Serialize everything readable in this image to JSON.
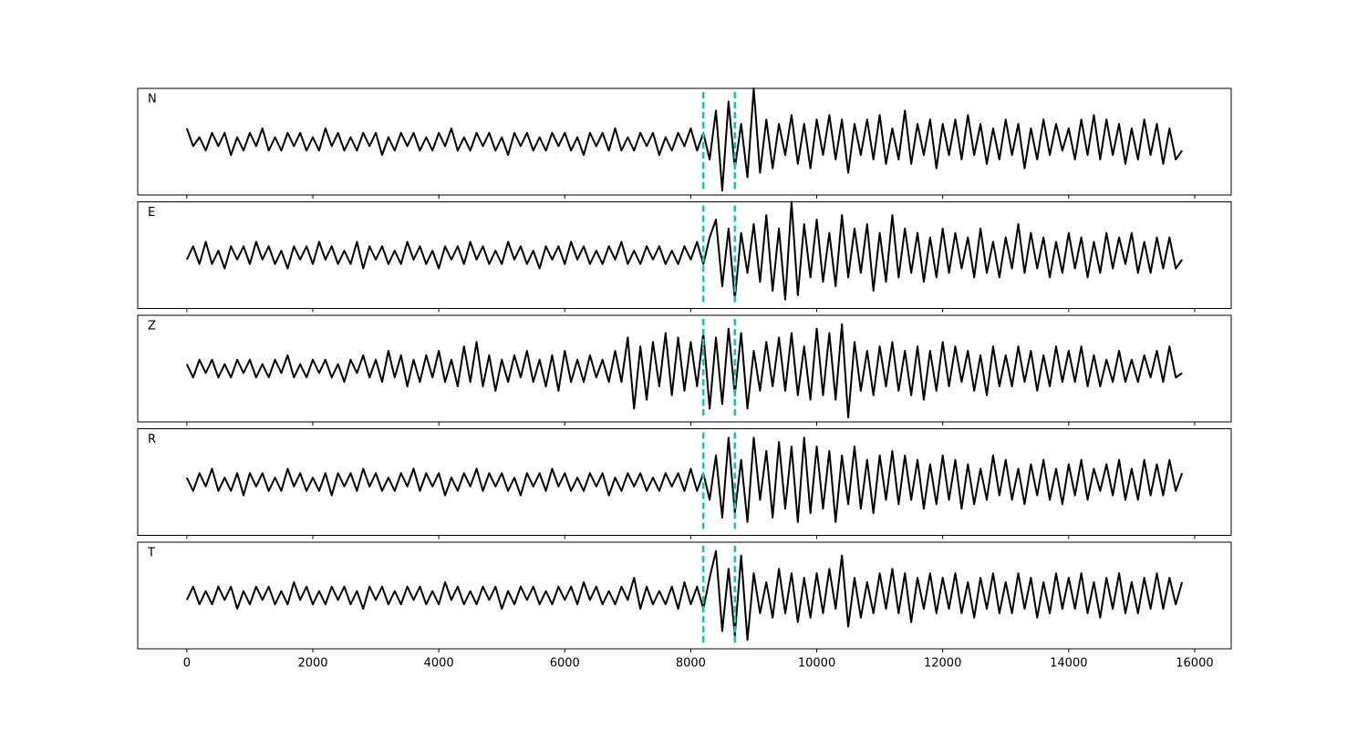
{
  "chart_data": {
    "type": "line",
    "layout": "stacked",
    "x": [
      0,
      100,
      200,
      300,
      400,
      500,
      600,
      700,
      800,
      900,
      1000,
      1100,
      1200,
      1300,
      1400,
      1500,
      1600,
      1700,
      1800,
      1900,
      2000,
      2100,
      2200,
      2300,
      2400,
      2500,
      2600,
      2700,
      2800,
      2900,
      3000,
      3100,
      3200,
      3300,
      3400,
      3500,
      3600,
      3700,
      3800,
      3900,
      4000,
      4100,
      4200,
      4300,
      4400,
      4500,
      4600,
      4700,
      4800,
      4900,
      5000,
      5100,
      5200,
      5300,
      5400,
      5500,
      5600,
      5700,
      5800,
      5900,
      6000,
      6100,
      6200,
      6300,
      6400,
      6500,
      6600,
      6700,
      6800,
      6900,
      7000,
      7100,
      7200,
      7300,
      7400,
      7500,
      7600,
      7700,
      7800,
      7900,
      8000,
      8100,
      8200,
      8300,
      8400,
      8500,
      8600,
      8700,
      8800,
      8900,
      9000,
      9100,
      9200,
      9300,
      9400,
      9500,
      9600,
      9700,
      9800,
      9900,
      10000,
      10100,
      10200,
      10300,
      10400,
      10500,
      10600,
      10700,
      10800,
      10900,
      11000,
      11100,
      11200,
      11300,
      11400,
      11500,
      11600,
      11700,
      11800,
      11900,
      12000,
      12100,
      12200,
      12300,
      12400,
      12500,
      12600,
      12700,
      12800,
      12900,
      13000,
      13100,
      13200,
      13300,
      13400,
      13500,
      13600,
      13700,
      13800,
      13900,
      14000,
      14100,
      14200,
      14300,
      14400,
      14500,
      14600,
      14700,
      14800,
      14900,
      15000,
      15100,
      15200,
      15300,
      15400,
      15500,
      15600,
      15700,
      15800
    ],
    "series": [
      {
        "name": "N",
        "color": "#000000",
        "values": [
          3,
          -1,
          1,
          -2,
          2,
          -1,
          2,
          -3,
          1,
          -2,
          2,
          -1,
          3,
          -2,
          1,
          -2,
          2,
          -1,
          2,
          -2,
          1,
          -2,
          3,
          -1,
          2,
          -2,
          1,
          -2,
          2,
          -1,
          2,
          -3,
          1,
          -2,
          2,
          -1,
          2,
          -2,
          1,
          -2,
          2,
          -1,
          3,
          -2,
          1,
          -2,
          2,
          -1,
          2,
          -2,
          1,
          -3,
          2,
          -1,
          2,
          -2,
          1,
          -2,
          2,
          -1,
          2,
          -2,
          1,
          -3,
          2,
          -1,
          2,
          -2,
          3,
          -2,
          1,
          -2,
          2,
          -1,
          2,
          -3,
          1,
          -2,
          2,
          -1,
          3,
          -2,
          2,
          -4,
          7,
          -11,
          9,
          -6,
          4,
          -8,
          12,
          -7,
          5,
          -6,
          4,
          -3,
          6,
          -5,
          4,
          -6,
          5,
          -3,
          6,
          -4,
          5,
          -7,
          4,
          -3,
          5,
          -4,
          6,
          -5,
          3,
          -4,
          7,
          -5,
          4,
          -3,
          5,
          -6,
          4,
          -3,
          5,
          -4,
          6,
          -3,
          4,
          -5,
          3,
          -4,
          5,
          -3,
          4,
          -6,
          3,
          -4,
          5,
          -3,
          4,
          -2,
          3,
          -4,
          5,
          -3,
          6,
          -4,
          5,
          -3,
          4,
          -5,
          3,
          -4,
          5,
          -3,
          4,
          -5,
          3,
          -4,
          -2
        ]
      },
      {
        "name": "E",
        "color": "#000000",
        "values": [
          -1,
          2,
          -2,
          3,
          -2,
          1,
          -3,
          2,
          -1,
          2,
          -2,
          3,
          -1,
          2,
          -2,
          1,
          -3,
          2,
          -1,
          2,
          -2,
          3,
          -1,
          2,
          -2,
          1,
          -2,
          3,
          -3,
          2,
          -1,
          2,
          -2,
          1,
          -2,
          3,
          -1,
          2,
          -2,
          1,
          -3,
          2,
          -1,
          2,
          -2,
          3,
          -1,
          2,
          -2,
          1,
          -2,
          3,
          -1,
          2,
          -2,
          1,
          -3,
          2,
          -1,
          2,
          -2,
          3,
          -1,
          2,
          -2,
          1,
          -2,
          2,
          -1,
          3,
          -2,
          1,
          -2,
          2,
          -1,
          2,
          -2,
          1,
          -2,
          2,
          -1,
          3,
          -2,
          4,
          8,
          -7,
          6,
          -10,
          5,
          -4,
          7,
          -6,
          9,
          -8,
          6,
          -10,
          12,
          -9,
          7,
          -5,
          8,
          -6,
          5,
          -7,
          9,
          -5,
          6,
          -4,
          7,
          -8,
          5,
          -6,
          9,
          -5,
          6,
          -4,
          5,
          -6,
          4,
          -5,
          6,
          -4,
          5,
          -3,
          4,
          -5,
          6,
          -4,
          3,
          -5,
          4,
          -3,
          7,
          -4,
          5,
          -3,
          4,
          -5,
          3,
          -4,
          5,
          -3,
          4,
          -5,
          3,
          -4,
          5,
          -3,
          4,
          -2,
          5,
          -4,
          3,
          -4,
          4,
          -3,
          4,
          -3,
          -1
        ]
      },
      {
        "name": "Z",
        "color": "#000000",
        "values": [
          1,
          -2,
          2,
          -1,
          2,
          -2,
          1,
          -2,
          2,
          -1,
          2,
          -2,
          1,
          -2,
          2,
          -1,
          3,
          -2,
          1,
          -2,
          2,
          -1,
          2,
          -2,
          1,
          -3,
          2,
          -1,
          3,
          -2,
          2,
          -3,
          4,
          -2,
          3,
          -4,
          2,
          -3,
          3,
          -2,
          4,
          -3,
          2,
          -4,
          5,
          -3,
          6,
          -4,
          3,
          -5,
          2,
          -3,
          3,
          -2,
          4,
          -3,
          2,
          -4,
          3,
          -5,
          4,
          -3,
          2,
          -3,
          3,
          -2,
          2,
          -3,
          4,
          -3,
          7,
          -9,
          5,
          -7,
          6,
          -4,
          8,
          -6,
          7,
          -5,
          6,
          -4,
          8,
          -9,
          7,
          -8,
          9,
          -6,
          8,
          -9,
          4,
          -5,
          6,
          -4,
          7,
          -5,
          8,
          -6,
          5,
          -7,
          9,
          -6,
          8,
          -7,
          10,
          -11,
          6,
          -5,
          4,
          -6,
          5,
          -4,
          6,
          -5,
          4,
          -6,
          5,
          -7,
          4,
          -5,
          6,
          -4,
          5,
          -3,
          4,
          -5,
          3,
          -6,
          5,
          -4,
          3,
          -4,
          5,
          -3,
          4,
          -5,
          3,
          -4,
          5,
          -3,
          4,
          -3,
          5,
          -4,
          3,
          -4,
          2,
          -3,
          4,
          -3,
          2,
          -3,
          3,
          -2,
          4,
          -3,
          5,
          -2,
          -1
        ]
      },
      {
        "name": "R",
        "color": "#000000",
        "values": [
          1,
          -2,
          2,
          -1,
          3,
          -2,
          1,
          -2,
          2,
          -3,
          2,
          -1,
          2,
          -2,
          1,
          -2,
          3,
          -1,
          2,
          -2,
          1,
          -2,
          2,
          -3,
          2,
          -1,
          2,
          -2,
          3,
          -1,
          2,
          -2,
          1,
          -2,
          2,
          -1,
          3,
          -2,
          2,
          -1,
          2,
          -3,
          1,
          -2,
          2,
          -1,
          3,
          -2,
          2,
          -1,
          2,
          -2,
          1,
          -3,
          2,
          -1,
          2,
          -2,
          3,
          -1,
          2,
          -2,
          1,
          -2,
          2,
          -1,
          2,
          -3,
          1,
          -2,
          2,
          -1,
          2,
          -2,
          1,
          -2,
          2,
          -1,
          2,
          -2,
          3,
          -2,
          2,
          -4,
          6,
          -8,
          10,
          -7,
          5,
          -9,
          10,
          -4,
          7,
          -8,
          9,
          -6,
          8,
          -9,
          10,
          -7,
          8,
          -6,
          7,
          -9,
          6,
          -5,
          8,
          -6,
          5,
          -7,
          6,
          -4,
          7,
          -5,
          6,
          -4,
          5,
          -6,
          4,
          -5,
          6,
          -4,
          5,
          -6,
          4,
          -5,
          3,
          -4,
          6,
          -3,
          5,
          -4,
          3,
          -5,
          4,
          -3,
          5,
          -4,
          3,
          -5,
          4,
          -3,
          5,
          -4,
          3,
          -2,
          4,
          -3,
          5,
          -4,
          3,
          -4,
          5,
          -3,
          4,
          -3,
          5,
          -2,
          2
        ]
      },
      {
        "name": "T",
        "color": "#000000",
        "values": [
          -1,
          2,
          -2,
          1,
          -2,
          2,
          -1,
          2,
          -3,
          1,
          -2,
          2,
          -1,
          2,
          -2,
          1,
          -2,
          3,
          -1,
          2,
          -2,
          1,
          -2,
          2,
          -1,
          2,
          -2,
          1,
          -3,
          2,
          -1,
          2,
          -2,
          1,
          -2,
          2,
          -1,
          2,
          -2,
          1,
          -2,
          3,
          -1,
          2,
          -2,
          1,
          -2,
          2,
          -1,
          2,
          -3,
          1,
          -2,
          2,
          -1,
          2,
          -2,
          1,
          -2,
          2,
          -1,
          2,
          -2,
          3,
          -1,
          2,
          -2,
          1,
          -2,
          2,
          -1,
          4,
          -3,
          2,
          -2,
          1,
          -2,
          2,
          -3,
          3,
          -2,
          2,
          -3,
          4,
          10,
          -8,
          6,
          -9,
          9,
          -10,
          5,
          -4,
          3,
          -5,
          6,
          -4,
          5,
          -6,
          4,
          -5,
          5,
          -4,
          6,
          -3,
          9,
          -7,
          4,
          -5,
          3,
          -4,
          5,
          -3,
          6,
          -4,
          5,
          -6,
          4,
          -3,
          5,
          -4,
          4,
          -3,
          5,
          -4,
          3,
          -5,
          4,
          -3,
          5,
          -4,
          3,
          -4,
          5,
          -3,
          4,
          -5,
          3,
          -4,
          5,
          -3,
          4,
          -3,
          5,
          -4,
          3,
          -5,
          4,
          -3,
          5,
          -4,
          3,
          -4,
          4,
          -3,
          5,
          -3,
          4,
          -2,
          3
        ]
      }
    ],
    "xlim": [
      -780,
      16580
    ],
    "xticks": [
      0,
      2000,
      4000,
      6000,
      8000,
      10000,
      12000,
      14000,
      16000
    ],
    "ylim": [
      -12,
      12
    ],
    "vlines": [
      8200,
      8700
    ],
    "vline_color": "#17c3b2",
    "vline_style": "dashed"
  }
}
